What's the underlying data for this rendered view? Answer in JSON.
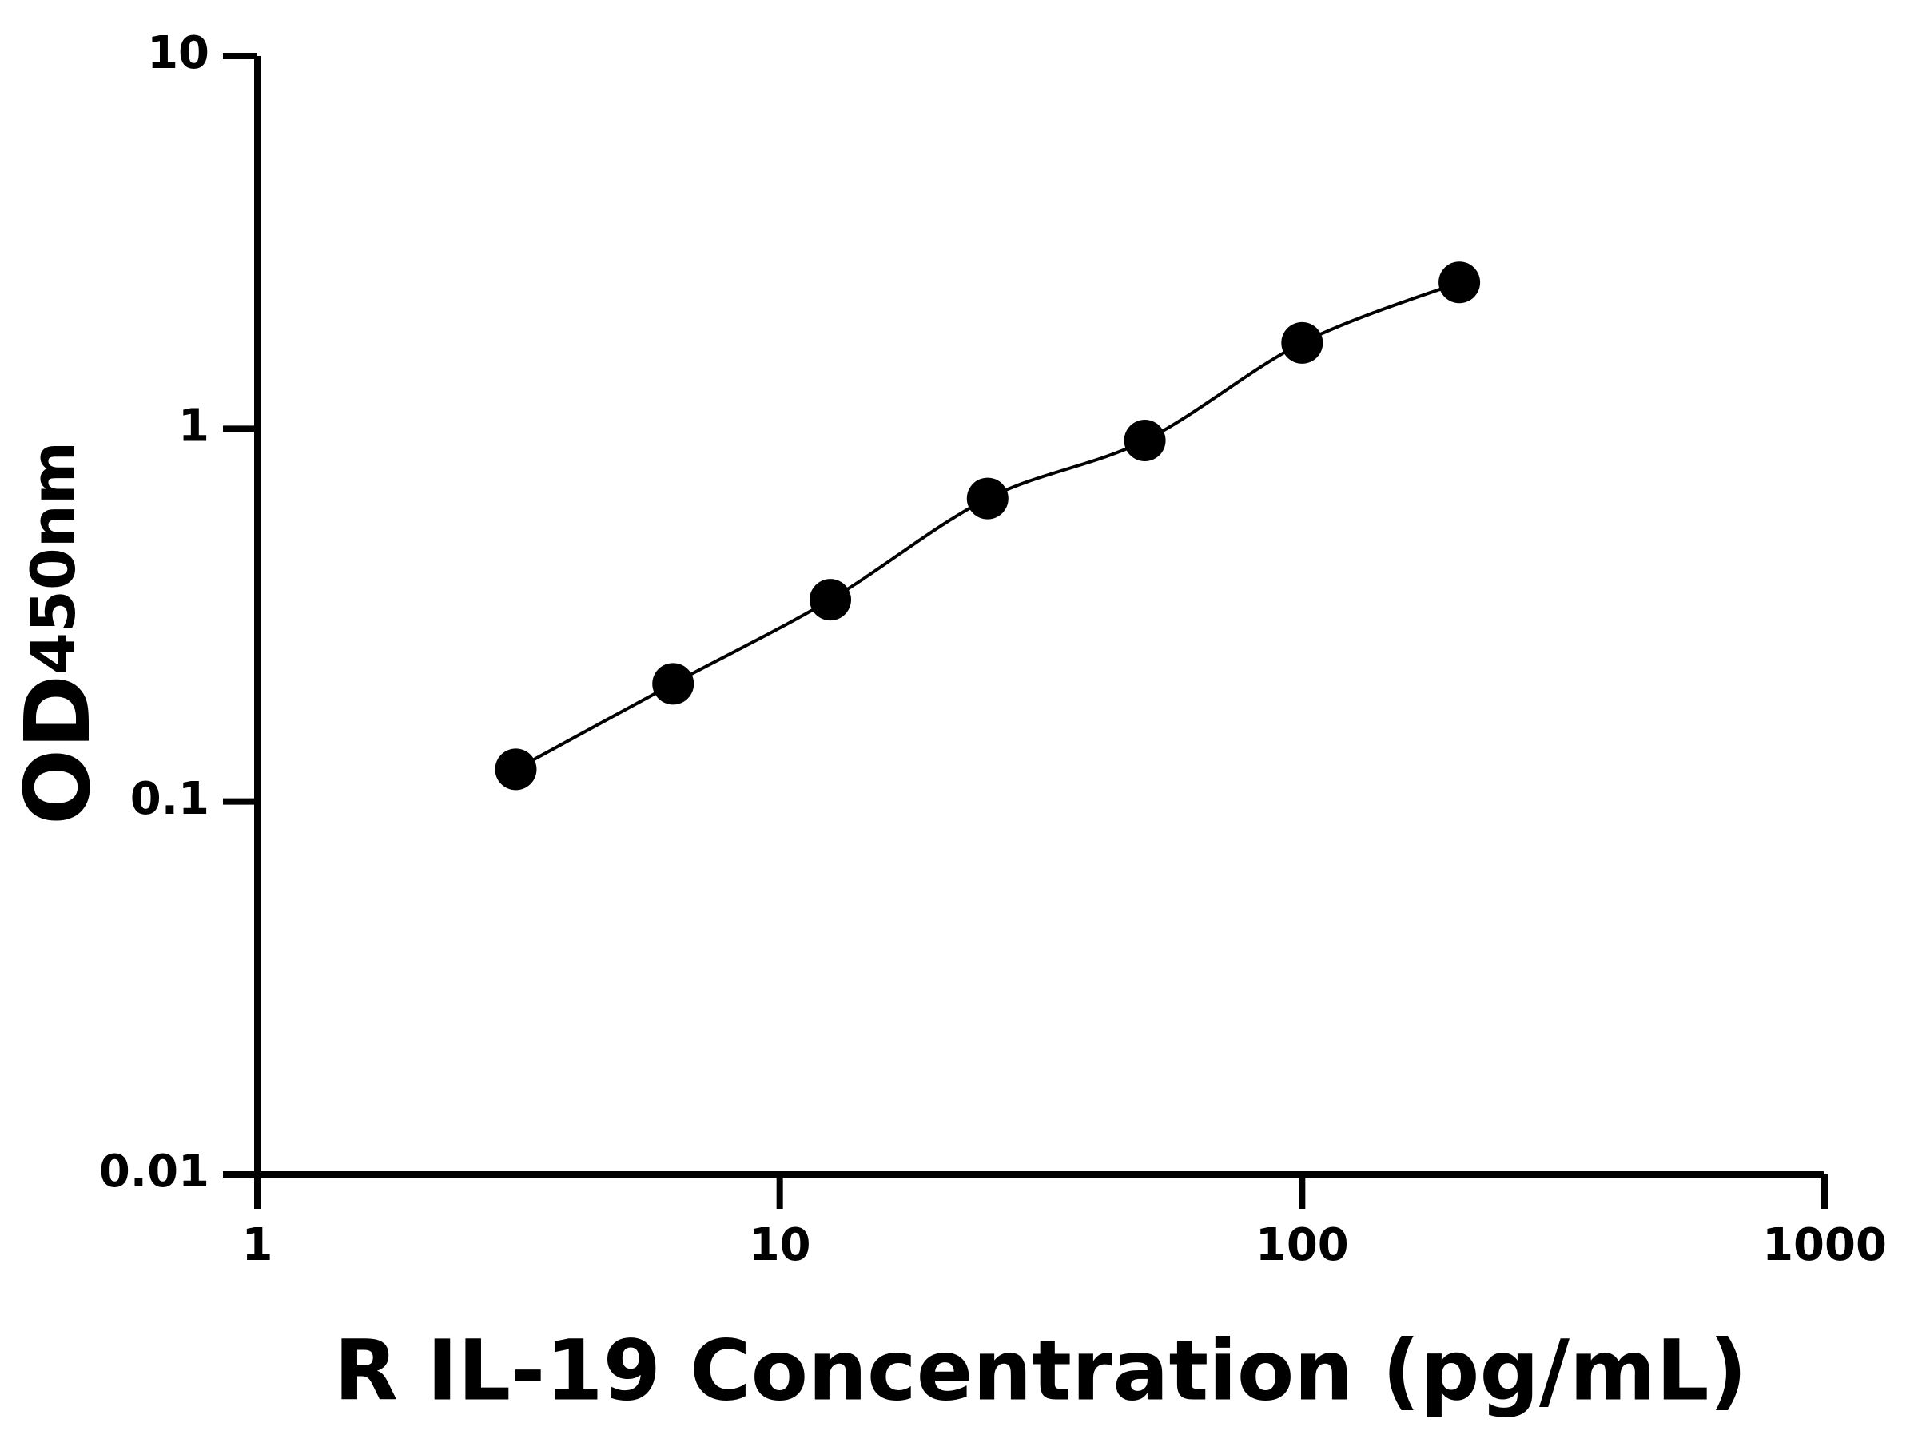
{
  "chart_data": {
    "type": "scatter",
    "xlabel": "R IL-19 Concentration (pg/mL)",
    "ylabel": "OD",
    "ylabel_subscript": "450nm",
    "x": [
      3.125,
      6.25,
      12.5,
      25,
      50,
      100,
      200
    ],
    "series": [
      {
        "color": "#000000",
        "values": [
          0.122,
          0.207,
          0.348,
          0.65,
          0.93,
          1.7,
          2.47
        ]
      }
    ],
    "xlim": [
      1,
      1000
    ],
    "ylim": [
      0.01,
      10
    ],
    "xticks": [
      1,
      10,
      100,
      1000
    ],
    "yticks": [
      0.01,
      0.1,
      1,
      10
    ],
    "xscale": "log",
    "yscale": "log",
    "fit_line": true
  }
}
